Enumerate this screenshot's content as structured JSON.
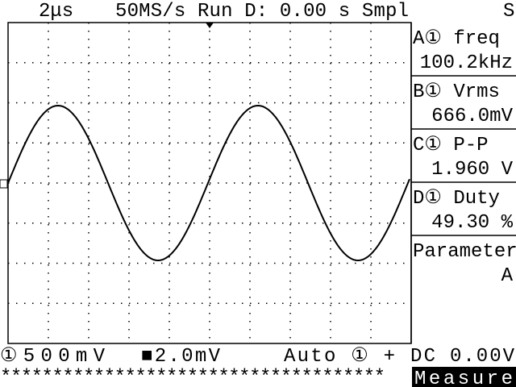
{
  "header": {
    "timebase": "2μs",
    "status": "50MS/s Run D: 0.00 s Smpl",
    "mode": "S"
  },
  "measurements": [
    {
      "label": "A① freq",
      "value": "100.2kHz"
    },
    {
      "label": "B① Vrms",
      "value": "666.0mV"
    },
    {
      "label": "C① P-P",
      "value": "1.960 V"
    },
    {
      "label": "D① Duty",
      "value": "49.30 %"
    },
    {
      "label": "Parameter",
      "value": "A"
    }
  ],
  "footer": {
    "ch1": "①500mV",
    "math": "■2.0mV",
    "trigger": "Auto ① + DC",
    "level": "0.00V",
    "stars": "*************************************",
    "menu": "Measure"
  }
}
